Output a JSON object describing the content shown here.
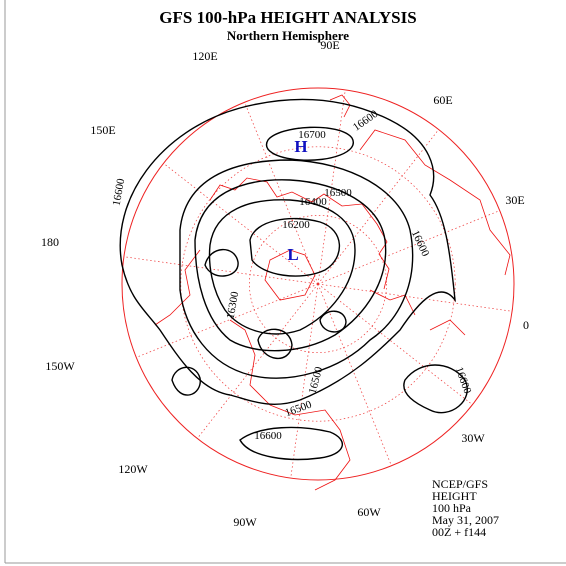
{
  "header": {
    "title": "GFS 100-hPa HEIGHT ANALYSIS",
    "subtitle": "Northern Hemisphere"
  },
  "longitudes": [
    "90E",
    "120E",
    "60E",
    "150E",
    "30E",
    "180",
    "0",
    "150W",
    "30W",
    "120W",
    "60W",
    "90W"
  ],
  "contour_labels": [
    "16700",
    "16600",
    "16600",
    "16500",
    "16400",
    "16200",
    "16300",
    "16600",
    "16600",
    "16500",
    "16600",
    "16500"
  ],
  "centers": [
    "H",
    "L"
  ],
  "info": [
    "NCEP/GFS",
    "HEIGHT",
    "100 hPa",
    "May 31, 2007",
    "00Z + f144"
  ]
}
